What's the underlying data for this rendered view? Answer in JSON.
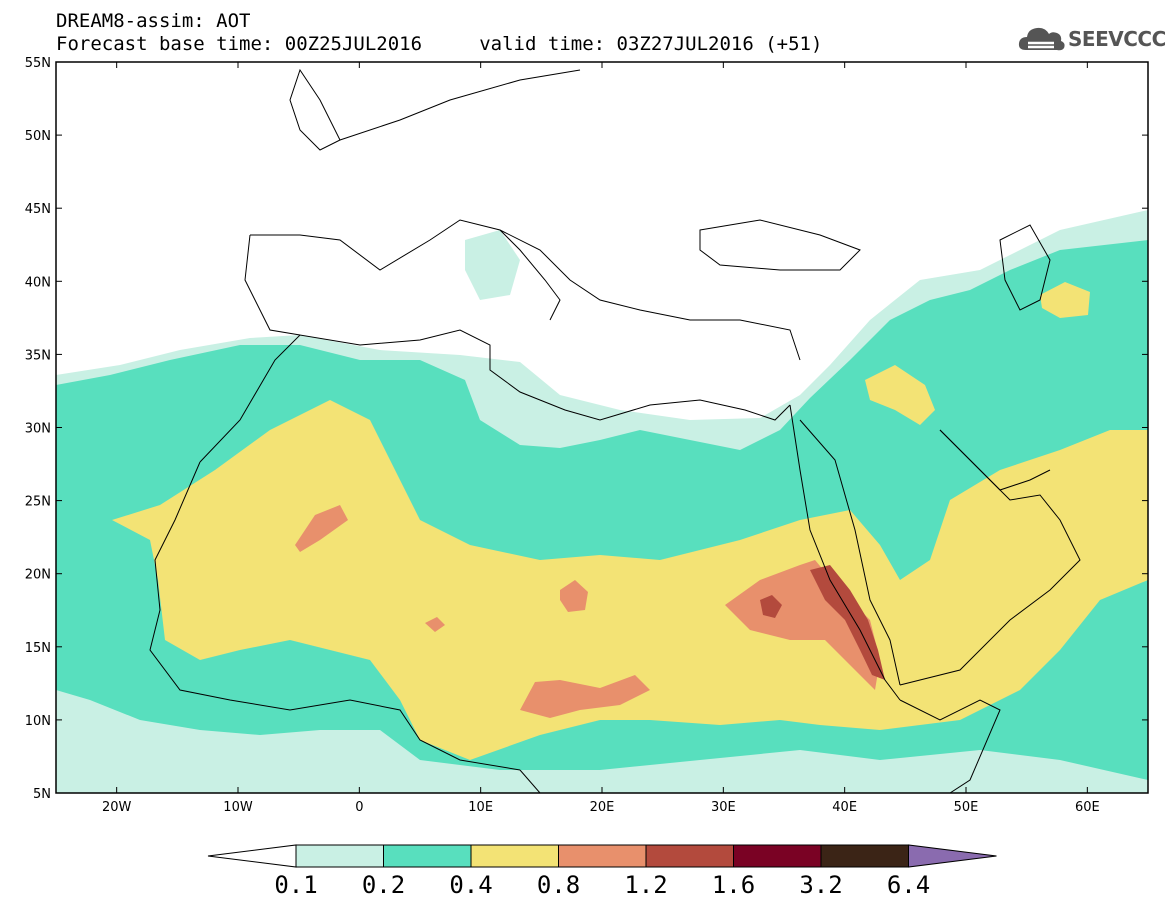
{
  "header": {
    "line1": "DREAM8-assim: AOT",
    "line2": "Forecast base time: 00Z25JUL2016     valid time: 03Z27JUL2016 (+51)"
  },
  "logo": {
    "text": "SEEVCCC",
    "icon": "cloud-icon"
  },
  "map": {
    "projection": "cylindrical equidistant",
    "lon_range": [
      -25,
      65
    ],
    "lat_range": [
      5,
      55
    ],
    "lon_ticks": [
      {
        "value": -20,
        "label": "20W"
      },
      {
        "value": -10,
        "label": "10W"
      },
      {
        "value": 0,
        "label": "0"
      },
      {
        "value": 10,
        "label": "10E"
      },
      {
        "value": 20,
        "label": "20E"
      },
      {
        "value": 30,
        "label": "30E"
      },
      {
        "value": 40,
        "label": "40E"
      },
      {
        "value": 50,
        "label": "50E"
      },
      {
        "value": 60,
        "label": "60E"
      }
    ],
    "lat_ticks": [
      {
        "value": 55,
        "label": "55N"
      },
      {
        "value": 50,
        "label": "50N"
      },
      {
        "value": 45,
        "label": "45N"
      },
      {
        "value": 40,
        "label": "40N"
      },
      {
        "value": 35,
        "label": "35N"
      },
      {
        "value": 30,
        "label": "30N"
      },
      {
        "value": 25,
        "label": "25N"
      },
      {
        "value": 20,
        "label": "20N"
      },
      {
        "value": 15,
        "label": "15N"
      },
      {
        "value": 10,
        "label": "10N"
      },
      {
        "value": 5,
        "label": "5N"
      }
    ],
    "field": "AOT",
    "level_colors": [
      "#ffffff",
      "#c9f0e4",
      "#58dfbe",
      "#f3e375",
      "#e8906c",
      "#b34a3d",
      "#7a0224",
      "#3b2416",
      "#8a6baf"
    ]
  },
  "colorbar": {
    "levels": [
      "0.1",
      "0.2",
      "0.4",
      "0.8",
      "1.2",
      "1.6",
      "3.2",
      "6.4"
    ],
    "colors": [
      "#ffffff",
      "#c9f0e4",
      "#58dfbe",
      "#f3e375",
      "#e8906c",
      "#b34a3d",
      "#7a0224",
      "#3b2416",
      "#8a6baf"
    ]
  }
}
